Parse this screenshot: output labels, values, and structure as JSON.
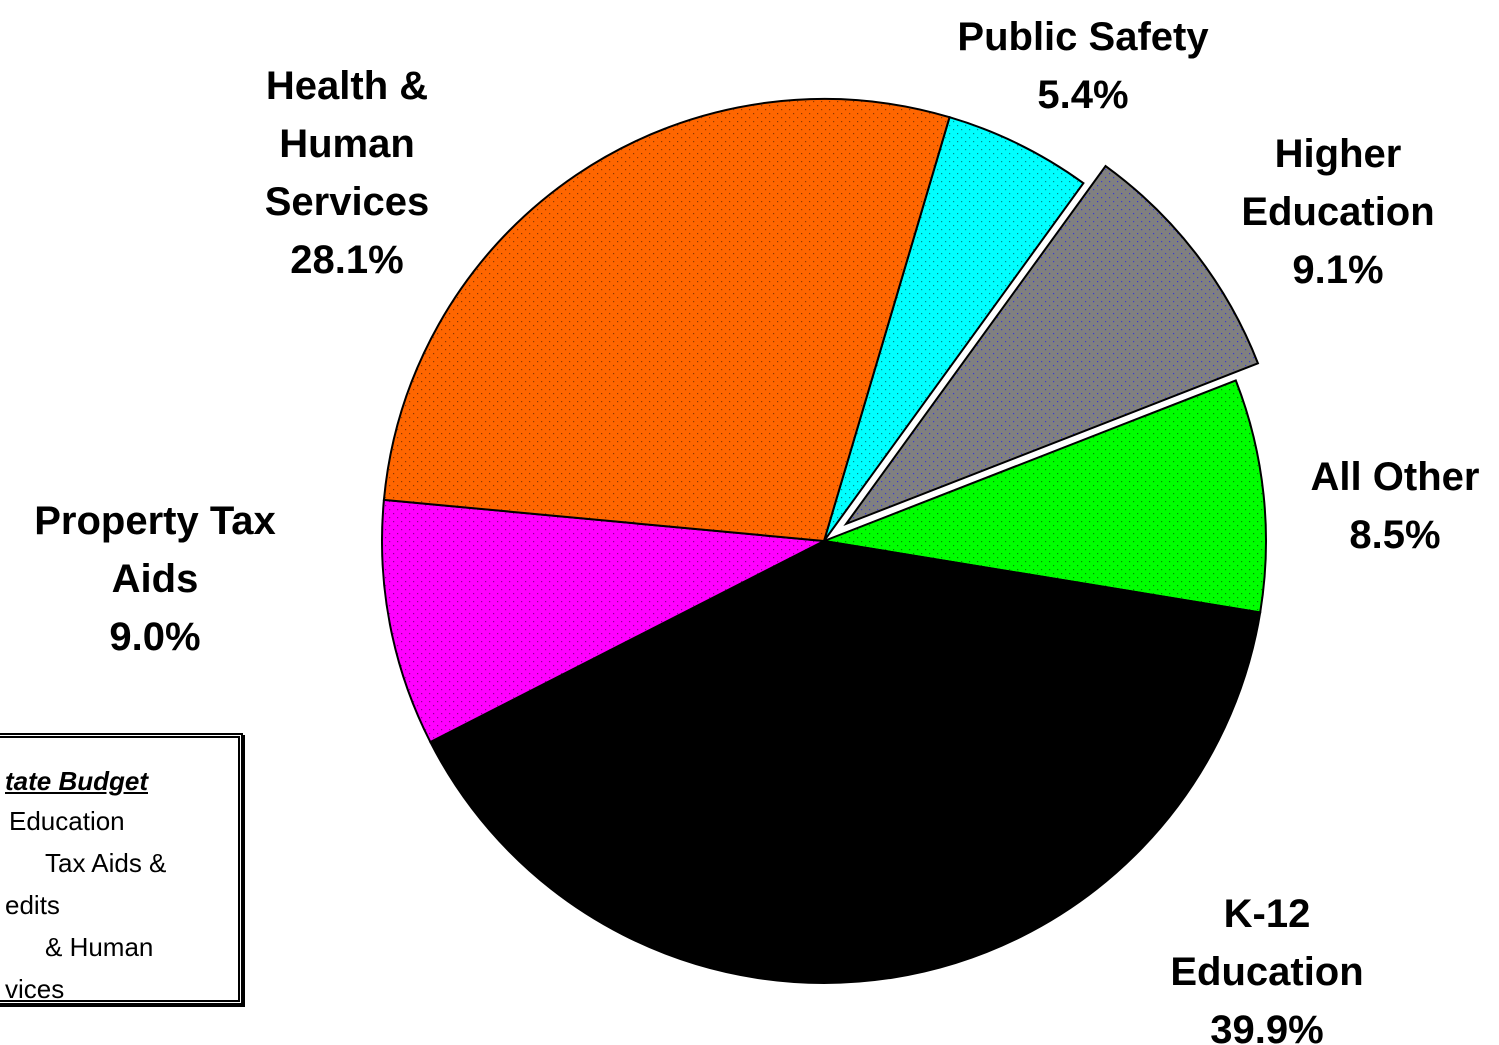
{
  "chart_data": {
    "type": "pie",
    "categories": [
      "Public Safety",
      "Higher Education",
      "All Other",
      "K-12 Education",
      "Property Tax Aids",
      "Health & Human Services"
    ],
    "values": [
      5.4,
      9.1,
      8.5,
      39.9,
      9.0,
      28.1
    ],
    "value_labels": [
      "5.4%",
      "9.1%",
      "8.5%",
      "39.9%",
      "9.0%",
      "28.1%"
    ],
    "colors": [
      "#00ffff",
      "#808080",
      "#00ff00",
      "#000000",
      "#ff00ff",
      "#ff6600"
    ],
    "explode": [
      false,
      true,
      false,
      false,
      false,
      false
    ],
    "note_box": {
      "title": "tate Budget",
      "lines": [
        "Education",
        "Tax Aids &",
        "edits",
        "& Human",
        "vices"
      ]
    }
  }
}
